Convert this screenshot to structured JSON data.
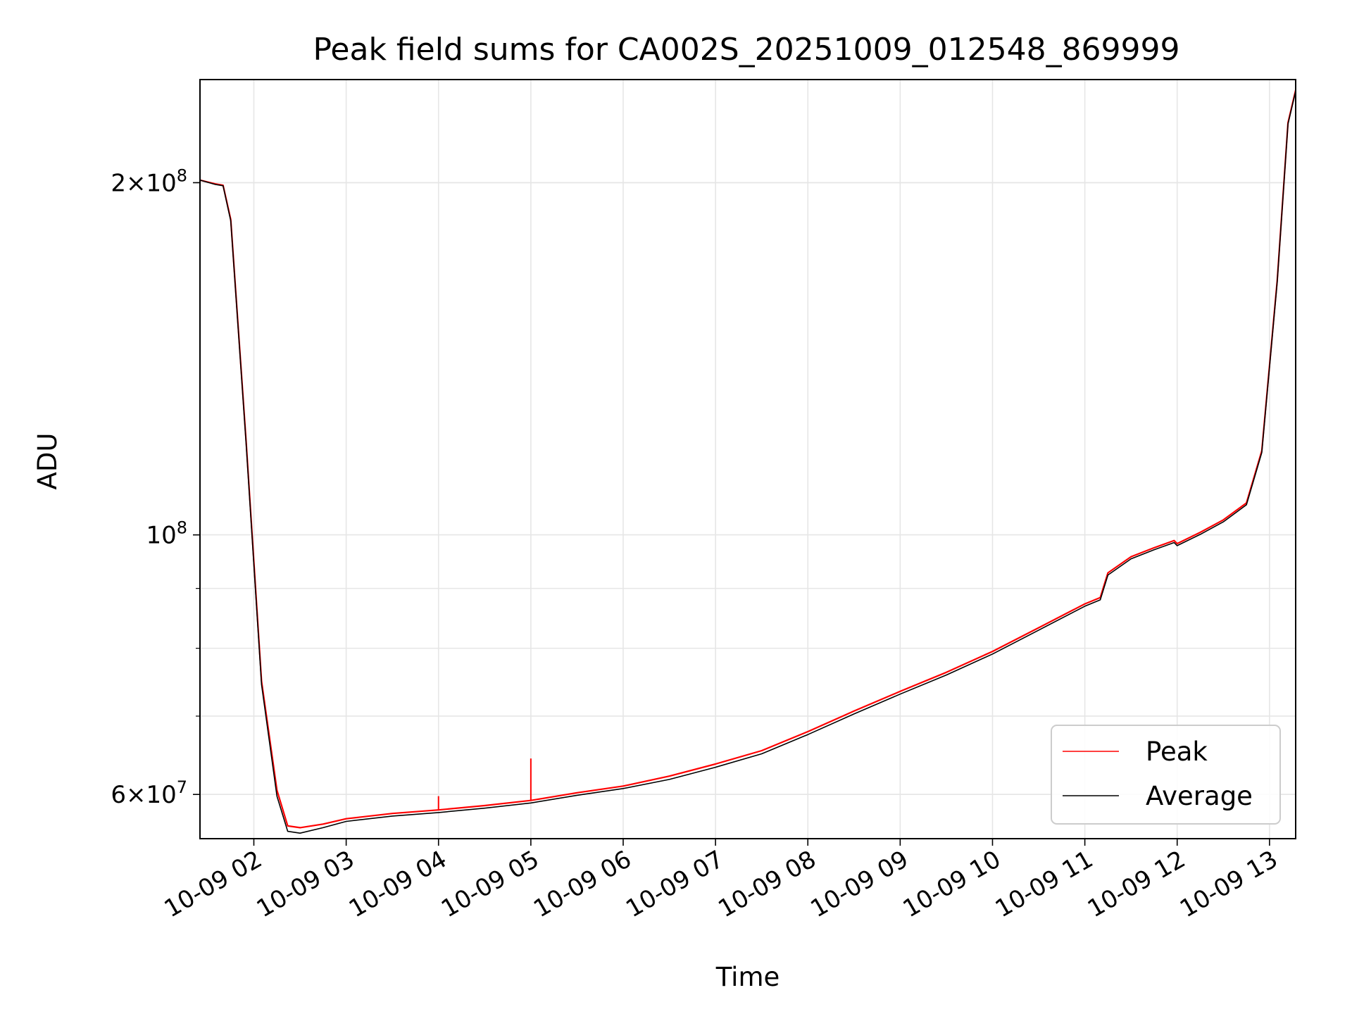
{
  "chart_data": {
    "type": "line",
    "title": "Peak field sums for CA002S_20251009_012548_869999",
    "xlabel": "Time",
    "ylabel": "ADU",
    "yscale": "log",
    "xlim": [
      "2025-10-09 01:25",
      "2025-10-09 13:17"
    ],
    "ylim": [
      55000000,
      245000000
    ],
    "grid": true,
    "legend_position": "lower-right",
    "x_tick_labels": [
      "10-09 02",
      "10-09 03",
      "10-09 04",
      "10-09 05",
      "10-09 06",
      "10-09 07",
      "10-09 08",
      "10-09 09",
      "10-09 10",
      "10-09 11",
      "10-09 12",
      "10-09 13"
    ],
    "y_tick_labels": [
      {
        "value": 200000000,
        "mantissa": "2",
        "exponent": "8"
      },
      {
        "value": 100000000,
        "mantissa": "",
        "exponent": "8"
      },
      {
        "value": 60000000,
        "mantissa": "6",
        "exponent": "7"
      }
    ],
    "x": [
      "2025-10-09 01:25",
      "2025-10-09 01:35",
      "2025-10-09 01:40",
      "2025-10-09 01:45",
      "2025-10-09 01:55",
      "2025-10-09 02:05",
      "2025-10-09 02:15",
      "2025-10-09 02:22",
      "2025-10-09 02:30",
      "2025-10-09 02:45",
      "2025-10-09 03:00",
      "2025-10-09 03:30",
      "2025-10-09 04:00",
      "2025-10-09 04:30",
      "2025-10-09 05:00",
      "2025-10-09 05:30",
      "2025-10-09 06:00",
      "2025-10-09 06:30",
      "2025-10-09 07:00",
      "2025-10-09 07:30",
      "2025-10-09 08:00",
      "2025-10-09 08:30",
      "2025-10-09 09:00",
      "2025-10-09 09:30",
      "2025-10-09 10:00",
      "2025-10-09 10:30",
      "2025-10-09 11:00",
      "2025-10-09 11:10",
      "2025-10-09 11:15",
      "2025-10-09 11:30",
      "2025-10-09 11:45",
      "2025-10-09 11:58",
      "2025-10-09 12:00",
      "2025-10-09 12:15",
      "2025-10-09 12:30",
      "2025-10-09 12:45",
      "2025-10-09 12:55",
      "2025-10-09 13:05",
      "2025-10-09 13:12",
      "2025-10-09 13:17"
    ],
    "series": [
      {
        "name": "Peak",
        "color": "#ff0000",
        "values": [
          201000000,
          199500000,
          199000000,
          186000000,
          120000000,
          75000000,
          60500000,
          56400000,
          56200000,
          56600000,
          57200000,
          57800000,
          58200000,
          58700000,
          59300000,
          60200000,
          61000000,
          62200000,
          63700000,
          65400000,
          67900000,
          70700000,
          73500000,
          76300000,
          79500000,
          83300000,
          87300000,
          88400000,
          92800000,
          95800000,
          97500000,
          98900000,
          98300000,
          100500000,
          103000000,
          106500000,
          118000000,
          165000000,
          225000000,
          240000000
        ]
      },
      {
        "name": "Average",
        "color": "#000000",
        "values": [
          201000000,
          199300000,
          198800000,
          185500000,
          119500000,
          74500000,
          59800000,
          55800000,
          55600000,
          56200000,
          56900000,
          57500000,
          57900000,
          58400000,
          59000000,
          59900000,
          60700000,
          61800000,
          63300000,
          65000000,
          67500000,
          70300000,
          73100000,
          75900000,
          79100000,
          82900000,
          86900000,
          88000000,
          92400000,
          95400000,
          97100000,
          98500000,
          97900000,
          100100000,
          102600000,
          106100000,
          117600000,
          164500000,
          224500000,
          239500000
        ]
      }
    ],
    "annotations": [
      {
        "x": "2025-10-09 04:00",
        "y": 59800000,
        "series": "Peak",
        "note": "spike"
      },
      {
        "x": "2025-10-09 05:00",
        "y": 64400000,
        "series": "Peak",
        "note": "spike"
      }
    ]
  }
}
